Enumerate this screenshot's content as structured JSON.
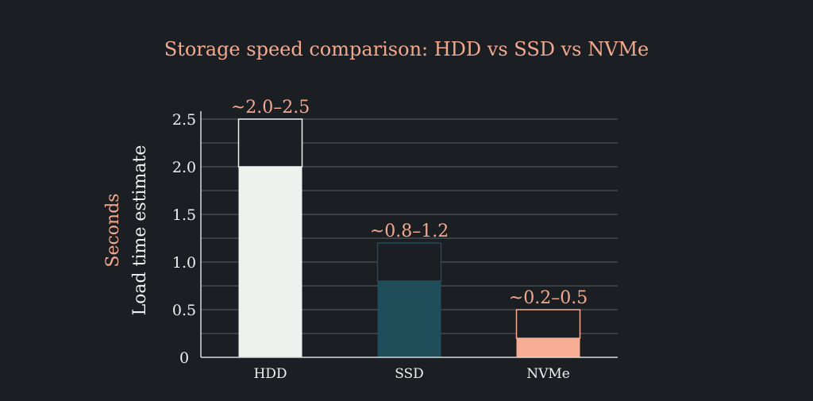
{
  "chart_data": {
    "type": "bar",
    "title": "Storage speed comparison: HDD vs SSD vs NVMe",
    "ylabel_line1": "Seconds",
    "ylabel_line2": "Load time estimate",
    "xlabel": "",
    "categories": [
      "HDD",
      "SSD",
      "NVMe"
    ],
    "ranges": [
      {
        "low": 2.0,
        "high": 2.5,
        "label": "~2.0–2.5",
        "fill": "#eef2ef",
        "outline": "#eef2ef"
      },
      {
        "low": 0.8,
        "high": 1.2,
        "label": "~0.8–1.2",
        "fill": "#1f4e5a",
        "outline": "#1f4e5a"
      },
      {
        "low": 0.2,
        "high": 0.5,
        "label": "~0.2–0.5",
        "fill": "#f6ad93",
        "outline": "#f6ad93"
      }
    ],
    "ylim": [
      0,
      2.5
    ],
    "yticks": [
      {
        "value": 0,
        "label": "0"
      },
      {
        "value": 0.5,
        "label": "0.5"
      },
      {
        "value": 1.0,
        "label": "1.0"
      },
      {
        "value": 1.5,
        "label": "1.5"
      },
      {
        "value": 2.0,
        "label": "2.0"
      },
      {
        "value": 2.5,
        "label": "2.5"
      }
    ],
    "gridlines": [
      0.25,
      0.5,
      0.75,
      1.0,
      1.25,
      1.5,
      1.75,
      2.0,
      2.25,
      2.5
    ],
    "grid": true,
    "legend": "none"
  },
  "colors": {
    "background": "#1b1f23",
    "title": "#f2a98f",
    "axis_label_line1": "#f2a98f",
    "axis_label_line2": "#eef2ef",
    "range_label": "#f2a98f",
    "tick_label": "#eef2ef",
    "grid": "#5b6166",
    "axis": "#d8dcd9"
  }
}
